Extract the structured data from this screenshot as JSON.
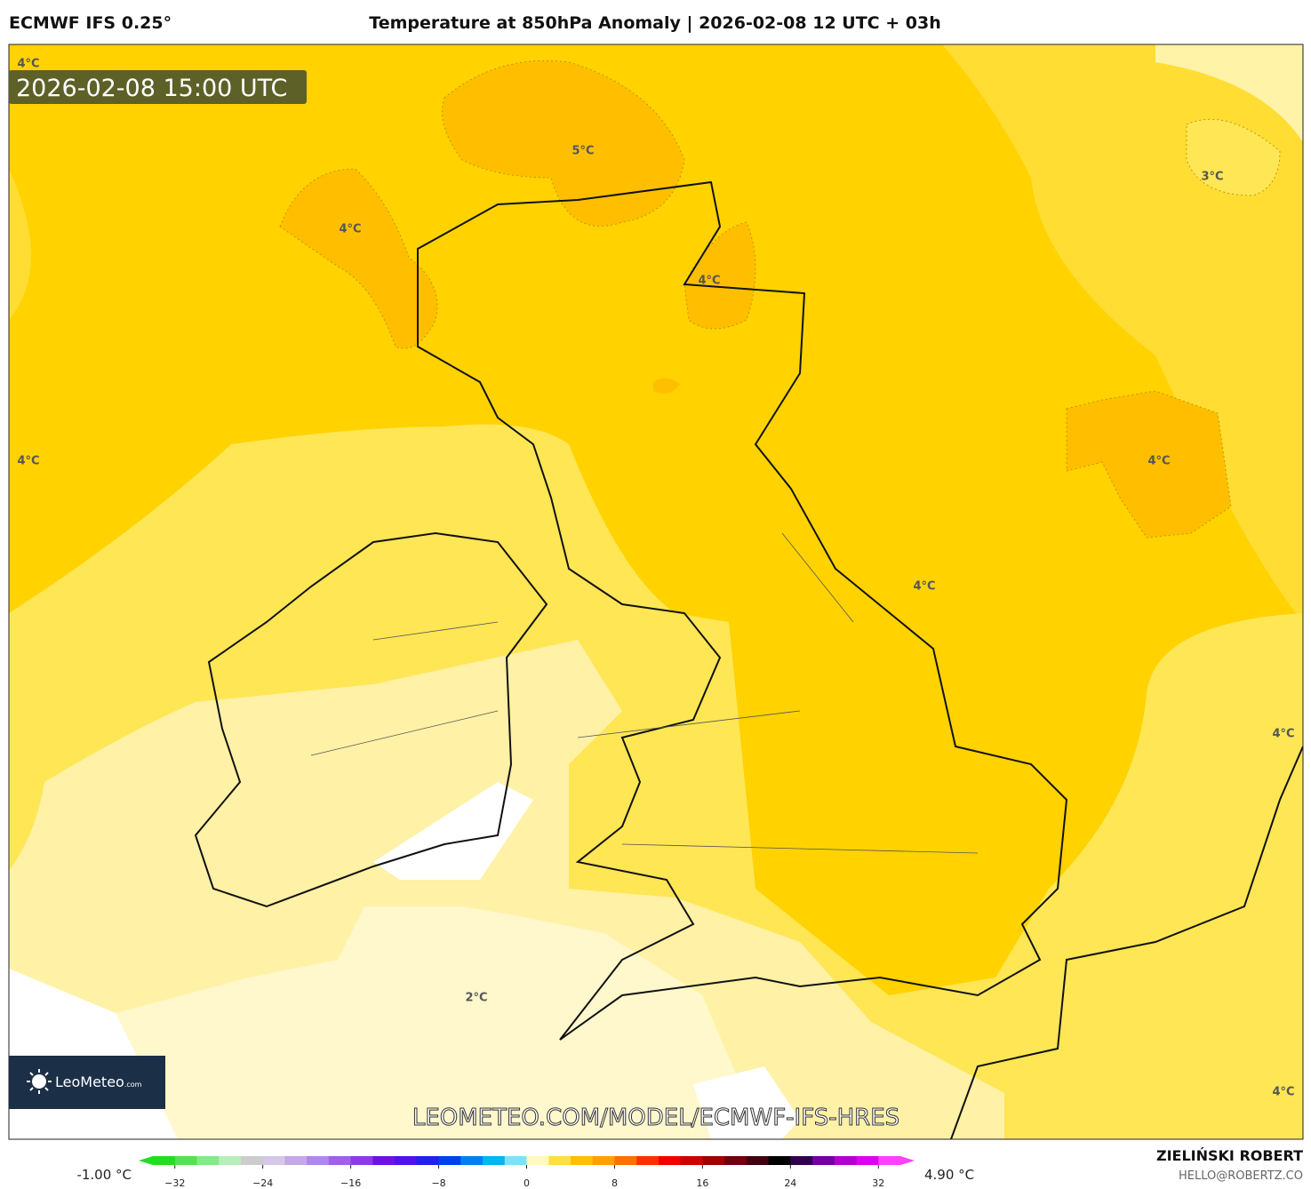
{
  "header": {
    "model": "ECMWF IFS 0.25°",
    "title": "Temperature at 850hPa Anomaly | 2026-02-08 12 UTC + 03h"
  },
  "map": {
    "valid_time": "2026-02-08 15:00 UTC",
    "contour_labels": [
      "4°C",
      "5°C",
      "4°C",
      "4°C",
      "3°C",
      "4°C",
      "4°C",
      "4°C",
      "4°C",
      "2°C",
      "4°C"
    ],
    "watermark": "LEOMETEO.COM/MODEL/ECMWF-IFS-HRES",
    "logo": "LeoMeteo",
    "logo_suffix": ".com"
  },
  "colorbar": {
    "min_label": "-1.00 °C",
    "max_label": "4.90 °C",
    "lim": [
      -34,
      34
    ],
    "ticks": [
      {
        "value": -32,
        "label": "−32"
      },
      {
        "value": -24,
        "label": "−24"
      },
      {
        "value": -16,
        "label": "−16"
      },
      {
        "value": -8,
        "label": "−8"
      },
      0,
      8,
      16,
      24,
      32
    ],
    "colors": [
      "#22dd22",
      "#55e055",
      "#88e888",
      "#b8eeb8",
      "#cccccc",
      "#d6c6e8",
      "#c4a8e8",
      "#b088e8",
      "#a060e8",
      "#8a3ae8",
      "#7010e8",
      "#5010f0",
      "#2020f0",
      "#0040f0",
      "#0080f0",
      "#00b8f0",
      "#80e0f8",
      "#fff8c0",
      "#ffe040",
      "#ffc000",
      "#ffa000",
      "#ff7000",
      "#ff3000",
      "#f00000",
      "#d00000",
      "#a00000",
      "#700010",
      "#400010",
      "#000000",
      "#300050",
      "#7000a0",
      "#b000d0",
      "#e000f0",
      "#ff40ff"
    ]
  },
  "footer": {
    "author": "ZIELIŃSKI ROBERT",
    "email": "HELLO@ROBERTZ.CO"
  }
}
